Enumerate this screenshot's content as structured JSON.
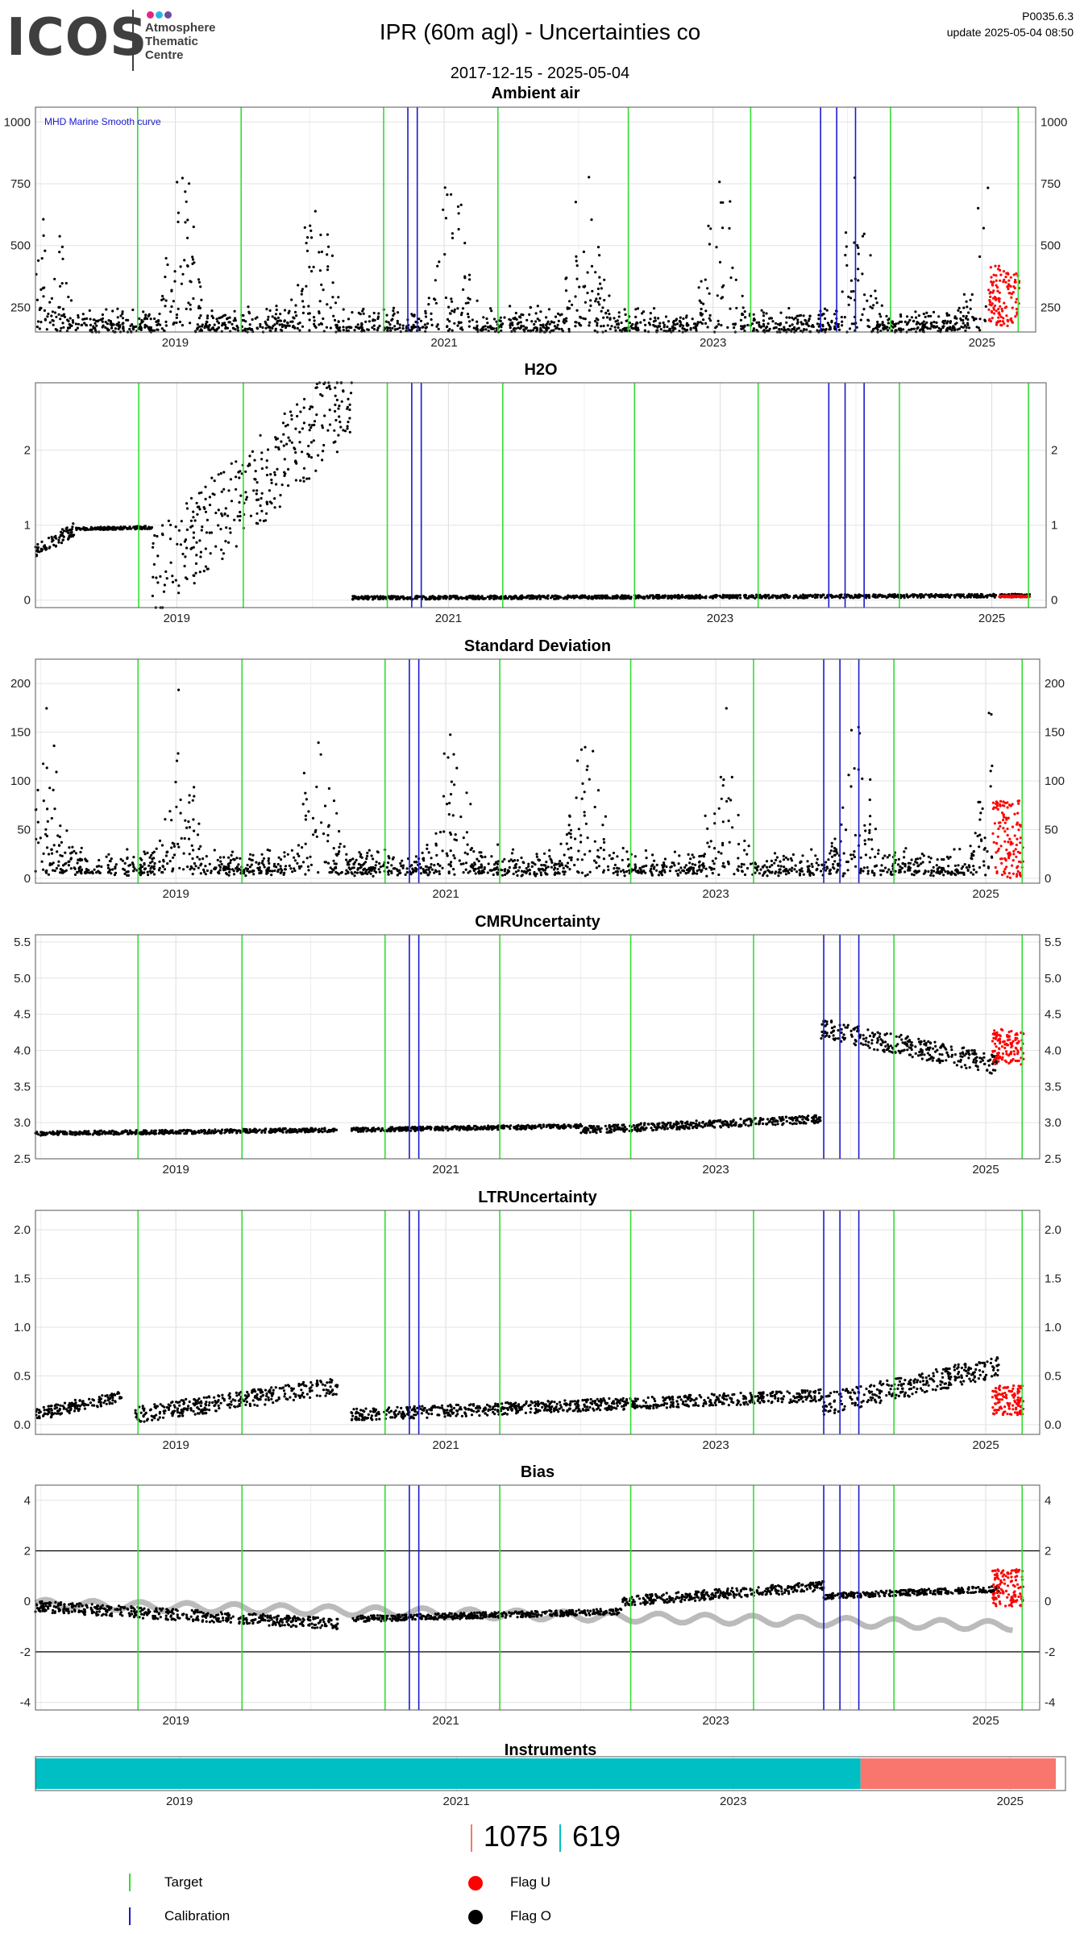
{
  "header": {
    "logo": "ICOS",
    "logo_sub": [
      "Atmosphere",
      "Thematic",
      "Centre"
    ],
    "title": "IPR  (60m agl) - Uncertainties co",
    "date_range": "2017-12-15 - 2025-05-04",
    "version": "P0035.6.3",
    "update": "update  2025-05-04 08:50"
  },
  "colors": {
    "target": "#33dd33",
    "calibration": "#1a1acc",
    "flag_u": "#ff0000",
    "flag_o": "#000000",
    "instrument_1": "#00bfc4",
    "instrument_2": "#f8766d",
    "bias_reference": "#bbbbbb",
    "bias_orange": "#e69f00"
  },
  "chart_data": [
    {
      "type": "scatter",
      "title": "Ambient air",
      "annotation": "MHD Marine Smooth curve",
      "x_ticks": [
        "2019",
        "2021",
        "2023",
        "2025"
      ],
      "y_ticks": [
        250,
        500,
        750,
        1000
      ],
      "ylim": [
        150,
        1060
      ],
      "series": [
        {
          "name": "Flag O",
          "pattern": "seasonal",
          "base": 155,
          "amp": 420,
          "noise": 70
        },
        {
          "name": "Flag U",
          "x_start": 2025.05,
          "x_end": 2025.28,
          "range": [
            170,
            420
          ]
        }
      ]
    },
    {
      "type": "scatter",
      "title": "H2O",
      "x_ticks": [
        "2019",
        "2021",
        "2023",
        "2025"
      ],
      "y_ticks": [
        0,
        1,
        2
      ],
      "ylim": [
        -0.1,
        2.9
      ],
      "series": [
        {
          "name": "Flag O",
          "segments": [
            {
              "x": [
                2017.96,
                2018.25
              ],
              "y": [
                0.65,
                0.95
              ]
            },
            {
              "x": [
                2018.25,
                2018.82
              ],
              "y": [
                0.95,
                0.97
              ]
            },
            {
              "x": [
                2018.82,
                2020.29
              ],
              "y": [
                0.3,
                2.7
              ]
            },
            {
              "x": [
                2020.29,
                2025.28
              ],
              "y": [
                0.03,
                0.06
              ]
            }
          ]
        },
        {
          "name": "Flag U",
          "x_start": 2025.05,
          "x_end": 2025.28,
          "range": [
            0.04,
            0.06
          ]
        }
      ]
    },
    {
      "type": "scatter",
      "title": "Standard Deviation",
      "x_ticks": [
        "2019",
        "2021",
        "2023",
        "2025"
      ],
      "y_ticks": [
        0,
        50,
        100,
        150,
        200
      ],
      "ylim": [
        -5,
        225
      ],
      "series": [
        {
          "name": "Flag O",
          "pattern": "seasonal",
          "base": 5,
          "amp": 110,
          "noise": 20
        },
        {
          "name": "Flag U",
          "x_start": 2025.05,
          "x_end": 2025.28,
          "range": [
            0,
            80
          ]
        }
      ]
    },
    {
      "type": "scatter",
      "title": "CMRUncertainty",
      "x_ticks": [
        "2019",
        "2021",
        "2023",
        "2025"
      ],
      "y_ticks": [
        2.5,
        3.0,
        3.5,
        4.0,
        4.5,
        5.0,
        5.5
      ],
      "ylim": [
        2.5,
        5.6
      ],
      "series": [
        {
          "name": "Flag O",
          "segments": [
            {
              "x": [
                2017.96,
                2020.2
              ],
              "y": [
                2.85,
                2.9
              ]
            },
            {
              "x": [
                2020.3,
                2022.0
              ],
              "y": [
                2.9,
                2.95
              ]
            },
            {
              "x": [
                2022.0,
                2023.78
              ],
              "y": [
                2.9,
                3.05
              ]
            },
            {
              "x": [
                2023.78,
                2025.1
              ],
              "y": [
                4.3,
                3.8
              ]
            }
          ]
        },
        {
          "name": "Flag U",
          "x_start": 2025.05,
          "x_end": 2025.28,
          "range": [
            3.8,
            4.3
          ]
        }
      ]
    },
    {
      "type": "scatter",
      "title": "LTRUncertainty",
      "x_ticks": [
        "2019",
        "2021",
        "2023",
        "2025"
      ],
      "y_ticks": [
        0.0,
        0.5,
        1.0,
        1.5,
        2.0
      ],
      "ylim": [
        -0.1,
        2.2
      ],
      "series": [
        {
          "name": "Flag O",
          "segments": [
            {
              "x": [
                2017.96,
                2018.6
              ],
              "y": [
                0.1,
                0.3
              ]
            },
            {
              "x": [
                2018.7,
                2020.2
              ],
              "y": [
                0.1,
                0.4
              ]
            },
            {
              "x": [
                2020.3,
                2023.78
              ],
              "y": [
                0.1,
                0.3
              ]
            },
            {
              "x": [
                2023.78,
                2025.1
              ],
              "y": [
                0.2,
                0.6
              ]
            }
          ]
        },
        {
          "name": "Flag U",
          "x_start": 2025.05,
          "x_end": 2025.28,
          "range": [
            0.1,
            0.4
          ]
        }
      ]
    },
    {
      "type": "scatter",
      "title": "Bias",
      "x_ticks": [
        "2019",
        "2021",
        "2023",
        "2025"
      ],
      "y_ticks": [
        -4,
        -2,
        0,
        2,
        4
      ],
      "ylim": [
        -4.3,
        4.6
      ],
      "reference_lines": [
        2,
        -2
      ],
      "series": [
        {
          "name": "Flag O",
          "segments": [
            {
              "x": [
                2017.96,
                2020.2
              ],
              "y": [
                -0.2,
                -0.9
              ]
            },
            {
              "x": [
                2020.3,
                2022.3
              ],
              "y": [
                -0.7,
                -0.4
              ]
            },
            {
              "x": [
                2022.3,
                2023.8
              ],
              "y": [
                0.0,
                0.6
              ]
            },
            {
              "x": [
                2023.8,
                2025.1
              ],
              "y": [
                0.2,
                0.5
              ]
            }
          ]
        },
        {
          "name": "Flag U",
          "x_start": 2025.05,
          "x_end": 2025.28,
          "range": [
            -0.2,
            1.3
          ]
        }
      ]
    },
    {
      "type": "bar",
      "title": "Instruments",
      "x_ticks": [
        "2019",
        "2021",
        "2023",
        "2025"
      ],
      "segments": [
        {
          "x_start": 2017.96,
          "x_end": 2023.92,
          "color": "#00bfc4"
        },
        {
          "x_start": 2023.92,
          "x_end": 2025.33,
          "color": "#f8766d"
        }
      ]
    }
  ],
  "events": {
    "target": [
      2018.72,
      2019.49,
      2020.55,
      2021.4,
      2022.37,
      2023.28,
      2024.32,
      2025.27
    ],
    "calibration": [
      2020.73,
      2020.8,
      2023.8,
      2023.92,
      2024.06
    ]
  },
  "counts": {
    "instrument_1": "1075",
    "instrument_2": "619"
  },
  "legend": {
    "target": "Target",
    "calibration": "Calibration",
    "flag_u": "Flag U",
    "flag_o": "Flag O"
  }
}
